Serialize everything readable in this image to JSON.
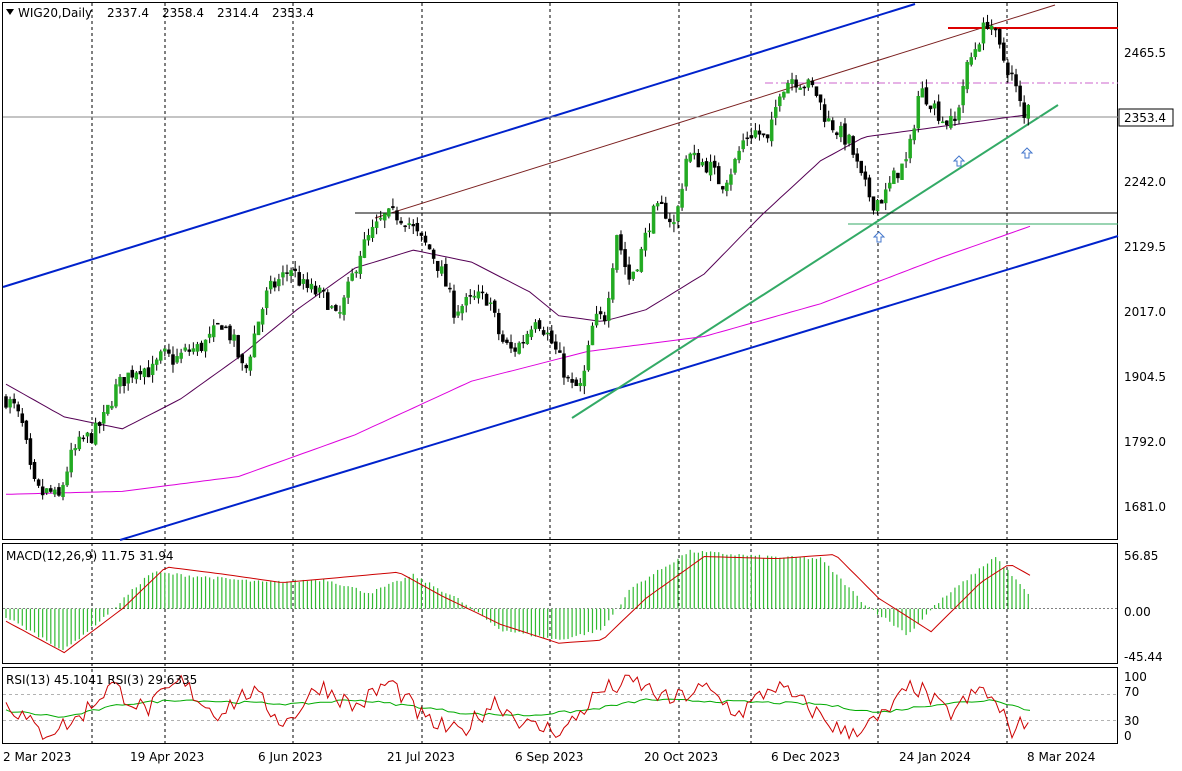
{
  "chart_data": [
    {
      "type": "candlestick",
      "title": "WIG20,Daily",
      "ohlc_readout": [
        "2337.4",
        "2358.4",
        "2314.4",
        "2353.4"
      ],
      "last_price_label": "2353.4",
      "y_ticks": [
        "2465.5",
        "2242.0",
        "2129.5",
        "2017.0",
        "1904.5",
        "1792.0",
        "1681.0"
      ],
      "x_ticks": [
        "2 Mar 2023",
        "19 Apr 2023",
        "6 Jun 2023",
        "21 Jul 2023",
        "6 Sep 2023",
        "20 Oct 2023",
        "6 Dec 2023",
        "24 Jan 2024",
        "8 Mar 2024"
      ],
      "ylim": [
        1625,
        2525
      ],
      "close_path": [
        {
          "d": 0,
          "c": 1860
        },
        {
          "d": 3,
          "c": 1845
        },
        {
          "d": 6,
          "c": 1810
        },
        {
          "d": 9,
          "c": 1720
        },
        {
          "d": 12,
          "c": 1700
        },
        {
          "d": 15,
          "c": 1705
        },
        {
          "d": 18,
          "c": 1690
        },
        {
          "d": 22,
          "c": 1760
        },
        {
          "d": 26,
          "c": 1790
        },
        {
          "d": 30,
          "c": 1800
        },
        {
          "d": 34,
          "c": 1830
        },
        {
          "d": 38,
          "c": 1880
        },
        {
          "d": 42,
          "c": 1900
        },
        {
          "d": 46,
          "c": 1915
        },
        {
          "d": 50,
          "c": 1905
        },
        {
          "d": 54,
          "c": 1935
        },
        {
          "d": 58,
          "c": 1925
        },
        {
          "d": 62,
          "c": 1940
        },
        {
          "d": 66,
          "c": 1945
        },
        {
          "d": 70,
          "c": 1960
        },
        {
          "d": 74,
          "c": 1990
        },
        {
          "d": 78,
          "c": 1960
        },
        {
          "d": 82,
          "c": 1900
        },
        {
          "d": 86,
          "c": 1980
        },
        {
          "d": 90,
          "c": 2040
        },
        {
          "d": 94,
          "c": 2060
        },
        {
          "d": 98,
          "c": 2080
        },
        {
          "d": 102,
          "c": 2050
        },
        {
          "d": 106,
          "c": 2040
        },
        {
          "d": 110,
          "c": 2030
        },
        {
          "d": 114,
          "c": 1990
        },
        {
          "d": 118,
          "c": 2050
        },
        {
          "d": 122,
          "c": 2110
        },
        {
          "d": 126,
          "c": 2140
        },
        {
          "d": 130,
          "c": 2165
        },
        {
          "d": 134,
          "c": 2170
        },
        {
          "d": 138,
          "c": 2160
        },
        {
          "d": 142,
          "c": 2130
        },
        {
          "d": 146,
          "c": 2110
        },
        {
          "d": 150,
          "c": 2070
        },
        {
          "d": 154,
          "c": 2010
        },
        {
          "d": 158,
          "c": 2020
        },
        {
          "d": 162,
          "c": 2030
        },
        {
          "d": 166,
          "c": 2030
        },
        {
          "d": 170,
          "c": 1960
        },
        {
          "d": 174,
          "c": 1940
        },
        {
          "d": 178,
          "c": 1960
        },
        {
          "d": 182,
          "c": 2000
        },
        {
          "d": 186,
          "c": 1970
        },
        {
          "d": 190,
          "c": 1930
        },
        {
          "d": 194,
          "c": 1880
        },
        {
          "d": 198,
          "c": 1880
        },
        {
          "d": 202,
          "c": 1990
        },
        {
          "d": 206,
          "c": 2000
        },
        {
          "d": 210,
          "c": 2140
        },
        {
          "d": 214,
          "c": 2060
        },
        {
          "d": 218,
          "c": 2100
        },
        {
          "d": 222,
          "c": 2170
        },
        {
          "d": 226,
          "c": 2180
        },
        {
          "d": 230,
          "c": 2150
        },
        {
          "d": 234,
          "c": 2270
        },
        {
          "d": 238,
          "c": 2260
        },
        {
          "d": 242,
          "c": 2250
        },
        {
          "d": 246,
          "c": 2220
        },
        {
          "d": 250,
          "c": 2250
        },
        {
          "d": 254,
          "c": 2300
        },
        {
          "d": 258,
          "c": 2310
        },
        {
          "d": 262,
          "c": 2290
        },
        {
          "d": 266,
          "c": 2380
        },
        {
          "d": 270,
          "c": 2400
        },
        {
          "d": 274,
          "c": 2390
        },
        {
          "d": 278,
          "c": 2380
        },
        {
          "d": 282,
          "c": 2330
        },
        {
          "d": 286,
          "c": 2310
        },
        {
          "d": 290,
          "c": 2290
        },
        {
          "d": 294,
          "c": 2230
        },
        {
          "d": 298,
          "c": 2190
        },
        {
          "d": 302,
          "c": 2200
        },
        {
          "d": 306,
          "c": 2240
        },
        {
          "d": 310,
          "c": 2260
        },
        {
          "d": 314,
          "c": 2380
        },
        {
          "d": 318,
          "c": 2360
        },
        {
          "d": 322,
          "c": 2330
        },
        {
          "d": 326,
          "c": 2320
        },
        {
          "d": 330,
          "c": 2410
        },
        {
          "d": 334,
          "c": 2460
        },
        {
          "d": 338,
          "c": 2500
        },
        {
          "d": 342,
          "c": 2440
        },
        {
          "d": 346,
          "c": 2400
        },
        {
          "d": 350,
          "c": 2330
        },
        {
          "d": 352,
          "c": 2353.4
        }
      ],
      "moving_averages": [
        {
          "color": "#550055",
          "points": [
            {
              "d": 0,
              "v": 1885
            },
            {
              "d": 20,
              "v": 1830
            },
            {
              "d": 40,
              "v": 1810
            },
            {
              "d": 60,
              "v": 1860
            },
            {
              "d": 80,
              "v": 1930
            },
            {
              "d": 100,
              "v": 2010
            },
            {
              "d": 120,
              "v": 2080
            },
            {
              "d": 140,
              "v": 2110
            },
            {
              "d": 160,
              "v": 2090
            },
            {
              "d": 180,
              "v": 2040
            },
            {
              "d": 190,
              "v": 2000
            },
            {
              "d": 205,
              "v": 1990
            },
            {
              "d": 220,
              "v": 2010
            },
            {
              "d": 240,
              "v": 2070
            },
            {
              "d": 260,
              "v": 2170
            },
            {
              "d": 280,
              "v": 2260
            },
            {
              "d": 295,
              "v": 2300
            },
            {
              "d": 310,
              "v": 2310
            },
            {
              "d": 325,
              "v": 2320
            },
            {
              "d": 340,
              "v": 2330
            },
            {
              "d": 352,
              "v": 2338
            }
          ]
        },
        {
          "color": "#dd00dd",
          "points": [
            {
              "d": 0,
              "v": 1700
            },
            {
              "d": 40,
              "v": 1705
            },
            {
              "d": 80,
              "v": 1730
            },
            {
              "d": 120,
              "v": 1800
            },
            {
              "d": 160,
              "v": 1890
            },
            {
              "d": 200,
              "v": 1940
            },
            {
              "d": 240,
              "v": 1965
            },
            {
              "d": 280,
              "v": 2020
            },
            {
              "d": 320,
              "v": 2095
            },
            {
              "d": 352,
              "v": 2150
            }
          ]
        }
      ]
    },
    {
      "type": "bar",
      "title": "MACD(12,26,9) 11.75 31.94",
      "y_ticks": [
        "56.85",
        "0.00",
        "-45.44"
      ],
      "ylim": [
        -52,
        62
      ],
      "histogram": [
        {
          "d": 0,
          "v": -8
        },
        {
          "d": 20,
          "v": -40
        },
        {
          "d": 35,
          "v": -5
        },
        {
          "d": 50,
          "v": 35
        },
        {
          "d": 70,
          "v": 30
        },
        {
          "d": 90,
          "v": 25
        },
        {
          "d": 110,
          "v": 28
        },
        {
          "d": 125,
          "v": 15
        },
        {
          "d": 140,
          "v": 32
        },
        {
          "d": 155,
          "v": 10
        },
        {
          "d": 170,
          "v": -20
        },
        {
          "d": 190,
          "v": -30
        },
        {
          "d": 205,
          "v": -20
        },
        {
          "d": 215,
          "v": 20
        },
        {
          "d": 235,
          "v": 55
        },
        {
          "d": 260,
          "v": 50
        },
        {
          "d": 280,
          "v": 48
        },
        {
          "d": 295,
          "v": 5
        },
        {
          "d": 310,
          "v": -25
        },
        {
          "d": 320,
          "v": 5
        },
        {
          "d": 340,
          "v": 50
        },
        {
          "d": 352,
          "v": 12
        }
      ],
      "signal": [
        {
          "d": 0,
          "v": -12
        },
        {
          "d": 20,
          "v": -42
        },
        {
          "d": 40,
          "v": 0
        },
        {
          "d": 55,
          "v": 40
        },
        {
          "d": 75,
          "v": 33
        },
        {
          "d": 95,
          "v": 25
        },
        {
          "d": 115,
          "v": 30
        },
        {
          "d": 135,
          "v": 35
        },
        {
          "d": 150,
          "v": 12
        },
        {
          "d": 170,
          "v": -15
        },
        {
          "d": 190,
          "v": -33
        },
        {
          "d": 205,
          "v": -30
        },
        {
          "d": 220,
          "v": 10
        },
        {
          "d": 240,
          "v": 50
        },
        {
          "d": 265,
          "v": 48
        },
        {
          "d": 285,
          "v": 52
        },
        {
          "d": 300,
          "v": 10
        },
        {
          "d": 318,
          "v": -22
        },
        {
          "d": 335,
          "v": 25
        },
        {
          "d": 345,
          "v": 43
        },
        {
          "d": 352,
          "v": 32
        }
      ]
    },
    {
      "type": "line",
      "title": "RSI(13) 45.1041  RSI(3) 29.6335",
      "y_ticks": [
        "100",
        "70",
        "30",
        "0"
      ],
      "ylim": [
        0,
        100
      ],
      "levels": [
        70,
        30
      ],
      "series": [
        {
          "color": "#00aa00",
          "points": [
            {
              "d": 0,
              "v": 45
            },
            {
              "d": 20,
              "v": 35
            },
            {
              "d": 40,
              "v": 55
            },
            {
              "d": 60,
              "v": 62
            },
            {
              "d": 80,
              "v": 58
            },
            {
              "d": 100,
              "v": 55
            },
            {
              "d": 120,
              "v": 62
            },
            {
              "d": 140,
              "v": 52
            },
            {
              "d": 160,
              "v": 40
            },
            {
              "d": 180,
              "v": 38
            },
            {
              "d": 200,
              "v": 46
            },
            {
              "d": 220,
              "v": 62
            },
            {
              "d": 240,
              "v": 60
            },
            {
              "d": 260,
              "v": 58
            },
            {
              "d": 280,
              "v": 55
            },
            {
              "d": 300,
              "v": 42
            },
            {
              "d": 320,
              "v": 55
            },
            {
              "d": 340,
              "v": 62
            },
            {
              "d": 352,
              "v": 45
            }
          ]
        },
        {
          "color": "#cc0000",
          "points": [
            {
              "d": 0,
              "v": 60
            },
            {
              "d": 12,
              "v": 10
            },
            {
              "d": 24,
              "v": 30
            },
            {
              "d": 36,
              "v": 85
            },
            {
              "d": 48,
              "v": 45
            },
            {
              "d": 60,
              "v": 90
            },
            {
              "d": 72,
              "v": 40
            },
            {
              "d": 84,
              "v": 75
            },
            {
              "d": 96,
              "v": 25
            },
            {
              "d": 108,
              "v": 85
            },
            {
              "d": 120,
              "v": 50
            },
            {
              "d": 132,
              "v": 90
            },
            {
              "d": 144,
              "v": 30
            },
            {
              "d": 156,
              "v": 10
            },
            {
              "d": 168,
              "v": 60
            },
            {
              "d": 180,
              "v": 20
            },
            {
              "d": 192,
              "v": 15
            },
            {
              "d": 204,
              "v": 75
            },
            {
              "d": 216,
              "v": 90
            },
            {
              "d": 228,
              "v": 60
            },
            {
              "d": 240,
              "v": 80
            },
            {
              "d": 252,
              "v": 40
            },
            {
              "d": 264,
              "v": 85
            },
            {
              "d": 276,
              "v": 50
            },
            {
              "d": 288,
              "v": 10
            },
            {
              "d": 300,
              "v": 30
            },
            {
              "d": 312,
              "v": 85
            },
            {
              "d": 324,
              "v": 40
            },
            {
              "d": 336,
              "v": 80
            },
            {
              "d": 346,
              "v": 15
            },
            {
              "d": 352,
              "v": 30
            }
          ]
        }
      ]
    }
  ]
}
